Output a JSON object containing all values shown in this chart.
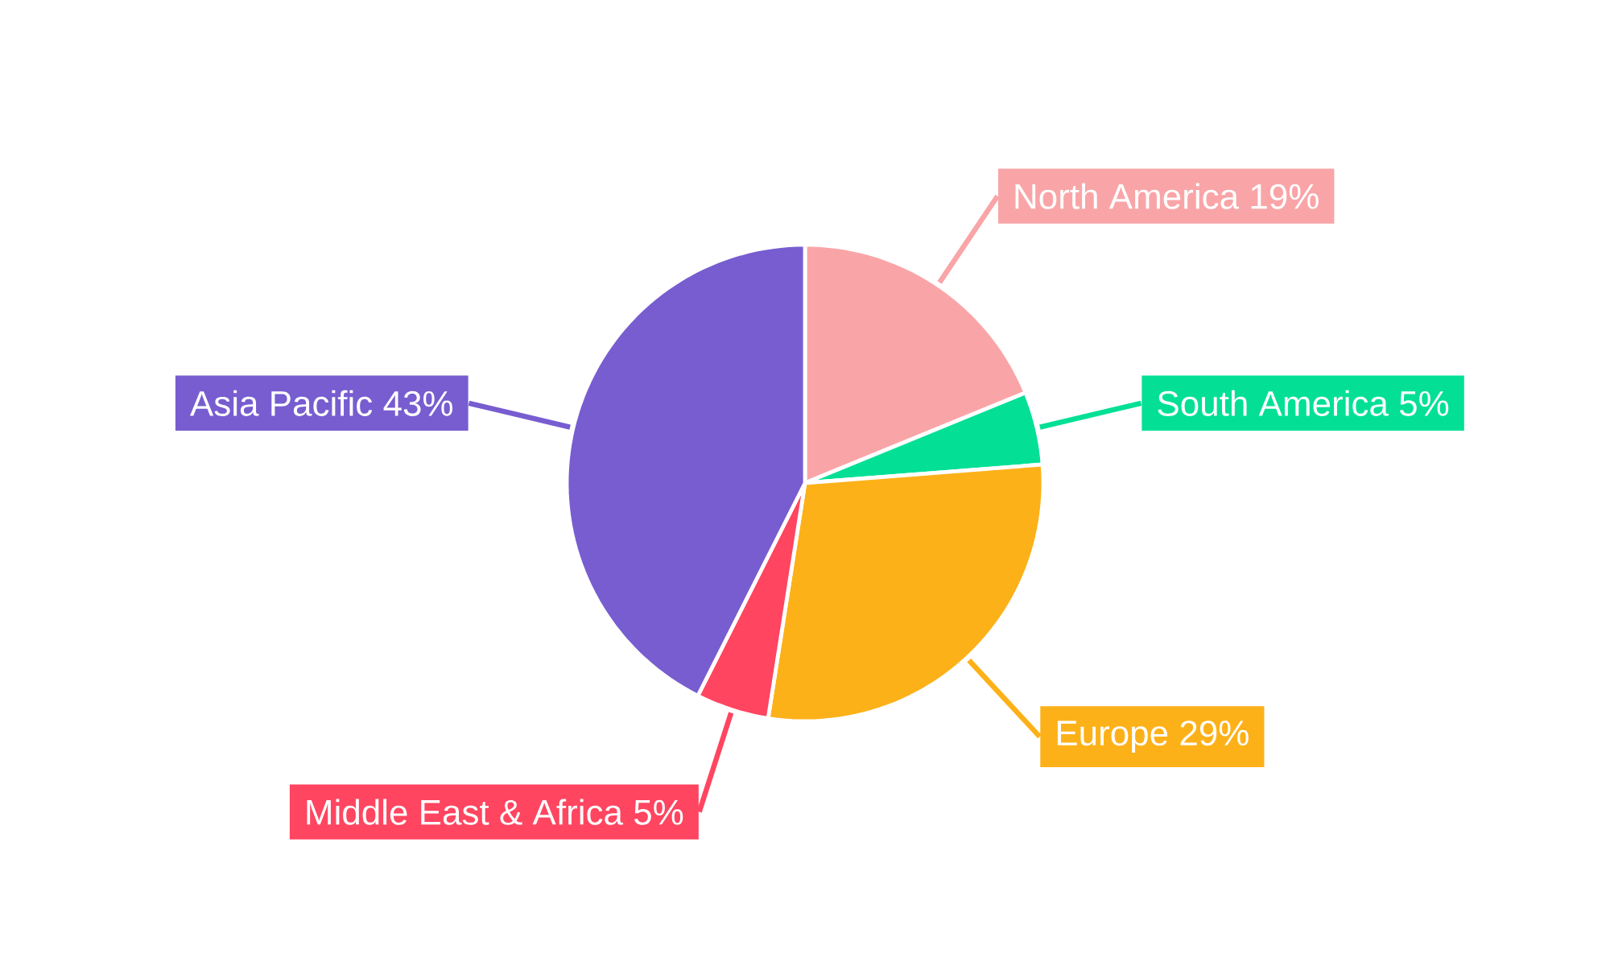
{
  "chart_data": {
    "type": "pie",
    "categories": [
      "North America",
      "South America",
      "Europe",
      "Middle East & Africa",
      "Asia Pacific"
    ],
    "values": [
      19,
      5,
      29,
      5,
      43
    ],
    "value_labels": [
      "19%",
      "5%",
      "29%",
      "5%",
      "43%"
    ],
    "colors": [
      "#f9a5a8",
      "#03e095",
      "#fdb119",
      "#ff4560",
      "#775dd0"
    ],
    "legend": false
  }
}
